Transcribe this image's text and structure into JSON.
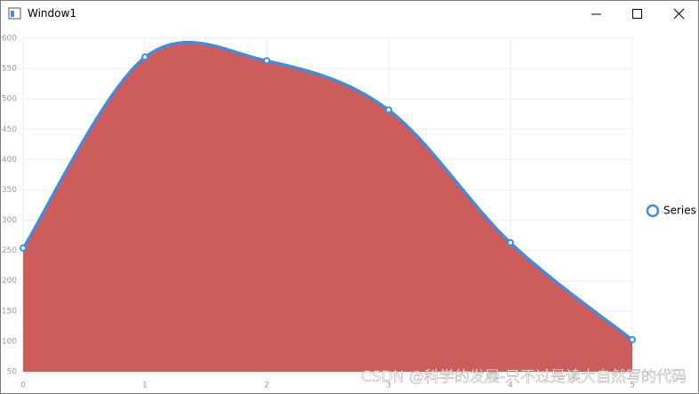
{
  "window": {
    "title": "Window1"
  },
  "chart_data": {
    "type": "area",
    "smooth": true,
    "x": [
      0,
      1,
      2,
      3,
      4,
      5
    ],
    "series": [
      {
        "name": "Series",
        "color": "#3a8ee6",
        "fill": "#cd5c5c",
        "values": [
          254,
          569,
          563,
          482,
          263,
          103
        ]
      }
    ],
    "xlim": [
      0,
      5
    ],
    "xticks": [
      0,
      1,
      2,
      3,
      4,
      5
    ],
    "ylim": [
      50,
      600
    ],
    "yticks": [
      50,
      100,
      150,
      200,
      250,
      300,
      350,
      400,
      450,
      500,
      550,
      600
    ],
    "grid": true,
    "legend": "right"
  },
  "watermark": "CSDN @科学的发展-只不过是读大自然写的代码"
}
